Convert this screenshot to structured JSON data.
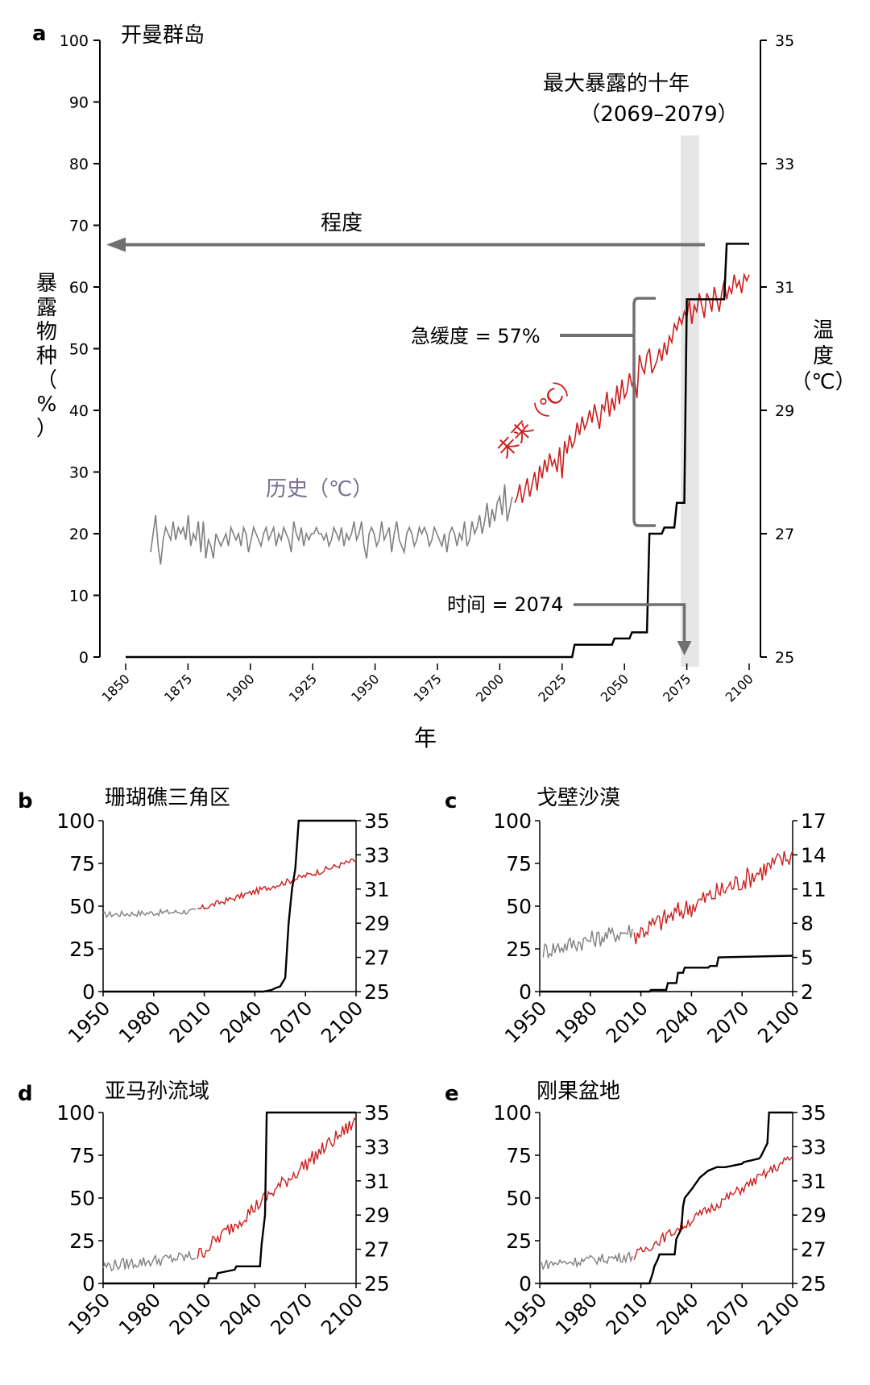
{
  "colors": {
    "historical": "#808080",
    "future": "#cc1f1f",
    "exposure": "#000000",
    "arrow": "#707070",
    "window": "#e6e6e6",
    "historical_label": "#7a6f92"
  },
  "chart_data": [
    {
      "panel": "a",
      "type": "line",
      "title": "开曼群岛",
      "xlabel": "年",
      "ylabel": "暴露物种（%）",
      "ylabel_chars": [
        "暴",
        "露",
        "物",
        "种",
        "（",
        "%",
        "）"
      ],
      "y2label_chars": [
        "温",
        "度",
        "（℃）"
      ],
      "xlim": [
        1850,
        2100
      ],
      "ylim": [
        0,
        100
      ],
      "y2lim": [
        25,
        35
      ],
      "xticks": [
        1850,
        1875,
        1900,
        1925,
        1950,
        1975,
        2000,
        2025,
        2050,
        2075,
        2100
      ],
      "yticks": [
        0,
        10,
        20,
        30,
        40,
        50,
        60,
        70,
        80,
        90,
        100
      ],
      "y2ticks": [
        25,
        27,
        29,
        31,
        33,
        35
      ],
      "window_label": "最大暴露的十年",
      "window_range_label": "（2069–2079）",
      "window": [
        2070,
        2080
      ],
      "magnitude_label": "程度",
      "magnitude_value": 67,
      "abruptness_label": "急缓度 = 57%",
      "timing_label": "时间 = 2074",
      "timing_year": 2074,
      "historical_label": "历史（℃）",
      "future_label": "未来（℃）",
      "series": [
        {
          "name": "历史（℃）",
          "axis": "temperature",
          "x_start": 1860,
          "x_end": 2005,
          "values": [
            26.7,
            27.0,
            27.3,
            26.8,
            26.5,
            26.9,
            27.1,
            27.0,
            26.9,
            27.2,
            26.9,
            27.1,
            27.0,
            27.1,
            26.9,
            27.3,
            26.8,
            27.0,
            26.9,
            27.2,
            26.7,
            27.2,
            26.6,
            26.9,
            26.8,
            26.6,
            27.0,
            26.9,
            26.8,
            26.9,
            27.0,
            26.8,
            27.1,
            27.0,
            26.9,
            27.0,
            26.8,
            27.1,
            27.0,
            26.7,
            26.9,
            27.1,
            27.0,
            26.9,
            26.8,
            27.0,
            27.1,
            26.9,
            27.0,
            27.1,
            26.8,
            27.0,
            26.9,
            27.1,
            27.0,
            26.9,
            26.7,
            27.2,
            27.0,
            26.9,
            27.1,
            26.8,
            27.0,
            26.9,
            27.0,
            27.0,
            27.1,
            27.0,
            27.0,
            26.9,
            27.0,
            26.8,
            26.9,
            27.1,
            27.0,
            26.9,
            27.1,
            26.8,
            27.0,
            26.9,
            27.0,
            27.2,
            26.9,
            27.0,
            27.2,
            26.8,
            26.6,
            27.0,
            27.1,
            27.0,
            26.8,
            26.9,
            27.2,
            26.9,
            27.0,
            27.1,
            26.7,
            27.0,
            27.2,
            26.9,
            26.8,
            26.7,
            27.0,
            27.1,
            27.0,
            26.8,
            26.9,
            27.1,
            27.0,
            27.1,
            27.0,
            26.8,
            26.9,
            27.1,
            27.0,
            26.9,
            26.8,
            27.0,
            26.7,
            27.0,
            27.1,
            27.0,
            26.8,
            27.0,
            26.9,
            27.2,
            26.8,
            26.9,
            27.2,
            27.0,
            27.1,
            27.3,
            27.0,
            27.2,
            27.5,
            27.1,
            27.4,
            27.2,
            27.5,
            27.6,
            27.3,
            27.8,
            27.2,
            27.4,
            27.6
          ]
        },
        {
          "name": "未来（℃）",
          "axis": "temperature",
          "x_start": 2006,
          "x_end": 2100,
          "values": [
            27.5,
            27.6,
            27.8,
            27.5,
            27.7,
            27.9,
            27.6,
            27.8,
            28.0,
            27.7,
            28.1,
            27.9,
            28.2,
            28.0,
            28.3,
            28.1,
            28.2,
            28.0,
            28.4,
            27.9,
            28.5,
            28.3,
            28.6,
            28.4,
            28.5,
            28.8,
            28.6,
            28.9,
            28.7,
            28.8,
            29.0,
            28.8,
            29.1,
            28.9,
            28.7,
            29.1,
            29.0,
            29.3,
            28.9,
            29.2,
            29.0,
            29.4,
            29.1,
            29.5,
            29.2,
            29.3,
            29.6,
            29.4,
            29.5,
            29.2,
            29.9,
            29.7,
            29.6,
            29.9,
            30.0,
            29.6,
            29.7,
            29.8,
            30.0,
            29.8,
            30.1,
            29.9,
            30.2,
            30.1,
            30.4,
            30.3,
            30.5,
            30.4,
            30.6,
            30.5,
            30.8,
            30.4,
            30.7,
            30.6,
            30.9,
            30.7,
            30.5,
            30.9,
            30.8,
            30.6,
            31.0,
            30.8,
            30.6,
            30.9,
            31.1,
            30.8,
            31.0,
            30.9,
            31.2,
            31.0,
            31.1,
            30.9,
            31.2,
            31.1,
            31.2
          ]
        },
        {
          "name": "暴露物种",
          "axis": "exposure",
          "x": [
            1850,
            2029,
            2030,
            2045,
            2046,
            2052,
            2053,
            2059,
            2060,
            2065,
            2066,
            2070,
            2071,
            2074,
            2075,
            2083,
            2084,
            2090,
            2091,
            2100
          ],
          "values": [
            0,
            0,
            2,
            2,
            3,
            3,
            4,
            4,
            20,
            20,
            21,
            21,
            25,
            25,
            58,
            58,
            58,
            58,
            67,
            67
          ]
        }
      ]
    },
    {
      "panel": "b",
      "type": "line",
      "title": "珊瑚礁三角区",
      "xlim": [
        1950,
        2100
      ],
      "ylim": [
        0,
        100
      ],
      "y2lim": [
        25,
        35
      ],
      "xticks": [
        1950,
        1980,
        2010,
        2040,
        2070,
        2100
      ],
      "yticks": [
        0,
        25,
        50,
        75,
        100
      ],
      "y2ticks": [
        25,
        27,
        29,
        31,
        33,
        35
      ],
      "series": [
        {
          "name": "历史（℃）",
          "axis": "temperature",
          "x_start": 1950,
          "x_end": 2005,
          "start": 29.5,
          "end": 29.7,
          "noise": 0.18
        },
        {
          "name": "未来（℃）",
          "axis": "temperature",
          "x_start": 2006,
          "x_end": 2100,
          "start": 29.8,
          "end": 32.7,
          "noise": 0.18
        },
        {
          "name": "暴露物种",
          "axis": "exposure",
          "x": [
            1950,
            2045,
            2050,
            2052,
            2055,
            2058,
            2060,
            2062,
            2064,
            2066,
            2100
          ],
          "values": [
            0,
            0,
            1,
            2,
            3,
            8,
            40,
            60,
            72,
            100,
            100
          ]
        }
      ]
    },
    {
      "panel": "c",
      "type": "line",
      "title": "戈壁沙漠",
      "xlim": [
        1950,
        2100
      ],
      "ylim": [
        0,
        100
      ],
      "y2lim": [
        2,
        17
      ],
      "xticks": [
        1950,
        1980,
        2010,
        2040,
        2070,
        2100
      ],
      "yticks": [
        0,
        25,
        50,
        75,
        100
      ],
      "y2ticks": [
        2,
        5,
        8,
        11,
        14,
        17
      ],
      "y2ticklabels": [
        "2",
        "5",
        "8",
        "11",
        "14",
        "17"
      ],
      "series": [
        {
          "name": "历史（℃）",
          "axis": "temperature",
          "x_start": 1952,
          "x_end": 2005,
          "start": 5.6,
          "end": 7.4,
          "noise": 0.8
        },
        {
          "name": "未来（℃）",
          "axis": "temperature",
          "x_start": 2006,
          "x_end": 2100,
          "start": 7.0,
          "end": 14.0,
          "noise": 1.0
        },
        {
          "name": "暴露物种",
          "axis": "exposure",
          "x": [
            1950,
            2015,
            2016,
            2025,
            2026,
            2031,
            2032,
            2035,
            2036,
            2050,
            2051,
            2055,
            2056,
            2100
          ],
          "values": [
            0,
            0,
            1,
            1,
            5,
            5,
            11,
            11,
            14,
            14,
            15,
            15,
            20,
            21
          ]
        }
      ]
    },
    {
      "panel": "d",
      "type": "line",
      "title": "亚马孙流域",
      "xlim": [
        1950,
        2100
      ],
      "ylim": [
        0,
        100
      ],
      "y2lim": [
        25,
        35
      ],
      "xticks": [
        1950,
        1980,
        2010,
        2040,
        2070,
        2100
      ],
      "yticks": [
        0,
        25,
        50,
        75,
        100
      ],
      "y2ticks": [
        25,
        27,
        29,
        31,
        33,
        35
      ],
      "series": [
        {
          "name": "历史（℃）",
          "axis": "temperature",
          "x_start": 1950,
          "x_end": 2005,
          "start": 26.0,
          "end": 26.6,
          "noise": 0.35
        },
        {
          "name": "未来（℃）",
          "axis": "temperature",
          "x_start": 2006,
          "x_end": 2100,
          "start": 26.6,
          "end": 34.5,
          "noise": 0.45
        },
        {
          "name": "暴露物种",
          "axis": "exposure",
          "x": [
            1950,
            2012,
            2013,
            2017,
            2018,
            2028,
            2029,
            2043,
            2044,
            2046,
            2047,
            2100
          ],
          "values": [
            0,
            0,
            3,
            3,
            6,
            8,
            10,
            10,
            23,
            40,
            100,
            100
          ]
        }
      ]
    },
    {
      "panel": "e",
      "type": "line",
      "title": "刚果盆地",
      "xlim": [
        1950,
        2100
      ],
      "ylim": [
        0,
        100
      ],
      "y2lim": [
        25,
        35
      ],
      "xticks": [
        1950,
        1980,
        2010,
        2040,
        2070,
        2100
      ],
      "yticks": [
        0,
        25,
        50,
        75,
        100
      ],
      "y2ticks": [
        25,
        27,
        29,
        31,
        33,
        35
      ],
      "series": [
        {
          "name": "历史（℃）",
          "axis": "temperature",
          "x_start": 1950,
          "x_end": 2005,
          "start": 26.1,
          "end": 26.6,
          "noise": 0.3
        },
        {
          "name": "未来（℃）",
          "axis": "temperature",
          "x_start": 2006,
          "x_end": 2100,
          "start": 26.6,
          "end": 32.4,
          "noise": 0.3
        },
        {
          "name": "暴露物种",
          "axis": "exposure",
          "x": [
            1950,
            2015,
            2016,
            2017,
            2018,
            2020,
            2021,
            2030,
            2031,
            2034,
            2035,
            2036,
            2040,
            2045,
            2050,
            2055,
            2060,
            2070,
            2071,
            2080,
            2081,
            2085,
            2086,
            2100
          ],
          "values": [
            0,
            0,
            3,
            6,
            10,
            14,
            17,
            17,
            26,
            32,
            45,
            50,
            55,
            62,
            66,
            68,
            68,
            70,
            71,
            73,
            74,
            82,
            100,
            100
          ]
        }
      ]
    }
  ],
  "panel_letters": [
    "a",
    "b",
    "c",
    "d",
    "e"
  ]
}
